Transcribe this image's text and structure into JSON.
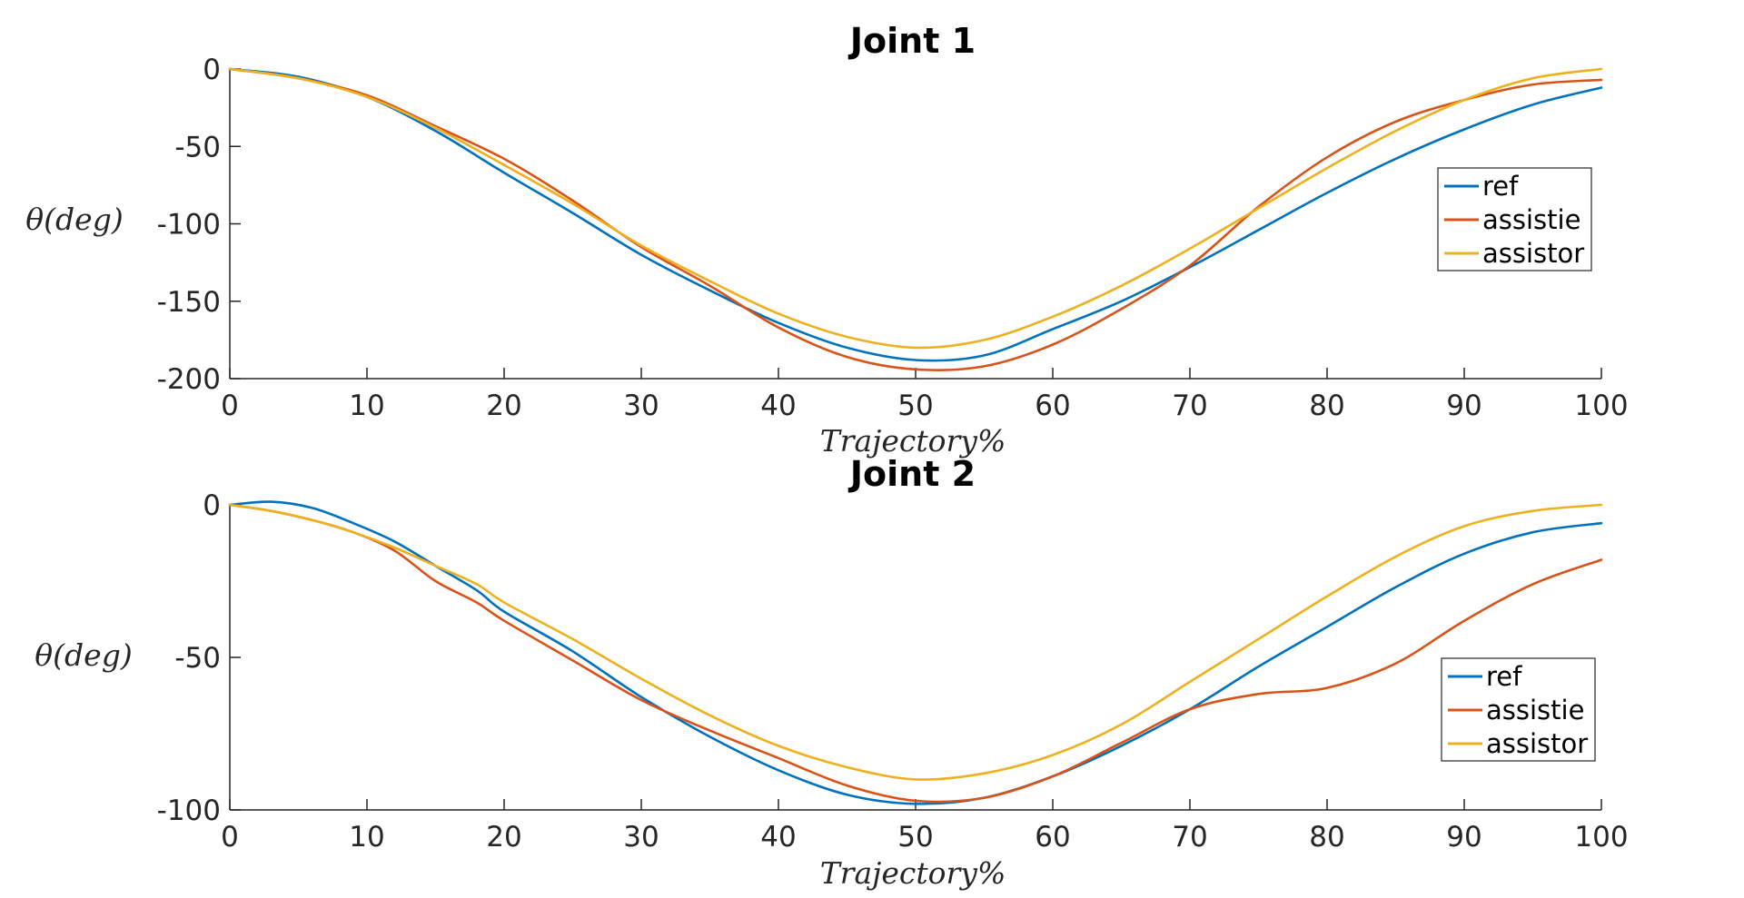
{
  "chart_data": [
    {
      "type": "line",
      "title": "Joint 1",
      "xlabel": "Trajectory%",
      "ylabel": "θ(deg)",
      "xlim": [
        0,
        100
      ],
      "ylim": [
        -200,
        0
      ],
      "x_ticks": [
        "0",
        "10",
        "20",
        "30",
        "40",
        "50",
        "60",
        "70",
        "80",
        "90",
        "100"
      ],
      "y_ticks": [
        "0",
        "-50",
        "-100",
        "-150",
        "-200"
      ],
      "grid": false,
      "legend": "right",
      "x": [
        0,
        5,
        10,
        15,
        20,
        25,
        30,
        35,
        40,
        45,
        50,
        55,
        60,
        65,
        70,
        75,
        80,
        85,
        90,
        95,
        100
      ],
      "series": [
        {
          "name": "ref",
          "color": "#0072BD",
          "values": [
            0,
            -5,
            -18,
            -40,
            -67,
            -93,
            -120,
            -143,
            -164,
            -180,
            -188,
            -185,
            -168,
            -150,
            -128,
            -104,
            -80,
            -58,
            -39,
            -23,
            -12
          ]
        },
        {
          "name": "assistie",
          "color": "#D95319",
          "values": [
            0,
            -6,
            -17,
            -37,
            -58,
            -85,
            -115,
            -140,
            -167,
            -186,
            -194,
            -192,
            -178,
            -155,
            -127,
            -89,
            -57,
            -34,
            -20,
            -10,
            -7
          ]
        },
        {
          "name": "assistor",
          "color": "#EDB120",
          "values": [
            0,
            -6,
            -18,
            -38,
            -62,
            -87,
            -114,
            -137,
            -158,
            -173,
            -180,
            -175,
            -160,
            -140,
            -116,
            -90,
            -64,
            -40,
            -20,
            -6,
            0
          ]
        }
      ]
    },
    {
      "type": "line",
      "title": "Joint 2",
      "xlabel": "Trajectory%",
      "ylabel": "θ(deg)",
      "xlim": [
        0,
        100
      ],
      "ylim": [
        -100,
        0
      ],
      "x_ticks": [
        "0",
        "10",
        "20",
        "30",
        "40",
        "50",
        "60",
        "70",
        "80",
        "90",
        "100"
      ],
      "y_ticks": [
        "0",
        "-50",
        "-100"
      ],
      "grid": false,
      "legend": "right",
      "x": [
        0,
        3,
        6,
        9,
        12,
        15,
        18,
        20,
        25,
        30,
        35,
        40,
        45,
        50,
        55,
        60,
        65,
        70,
        75,
        80,
        85,
        90,
        95,
        100
      ],
      "series": [
        {
          "name": "ref",
          "color": "#0072BD",
          "values": [
            0,
            1,
            -1,
            -6,
            -12,
            -20,
            -28,
            -35,
            -48,
            -63,
            -76,
            -87,
            -95,
            -98,
            -96,
            -89,
            -79,
            -67,
            -53,
            -40,
            -27,
            -16,
            -9,
            -6
          ]
        },
        {
          "name": "assistie",
          "color": "#D95319",
          "values": [
            0,
            -2,
            -5,
            -9,
            -15,
            -25,
            -32,
            -38,
            -51,
            -64,
            -74,
            -83,
            -92,
            -97,
            -96,
            -89,
            -78,
            -67,
            -62,
            -60,
            -52,
            -38,
            -26,
            -18
          ]
        },
        {
          "name": "assistor",
          "color": "#EDB120",
          "values": [
            0,
            -2,
            -5,
            -9,
            -14,
            -20,
            -26,
            -32,
            -44,
            -57,
            -69,
            -79,
            -86,
            -90,
            -88,
            -82,
            -72,
            -58,
            -44,
            -30,
            -17,
            -7,
            -2,
            0
          ]
        }
      ]
    }
  ]
}
